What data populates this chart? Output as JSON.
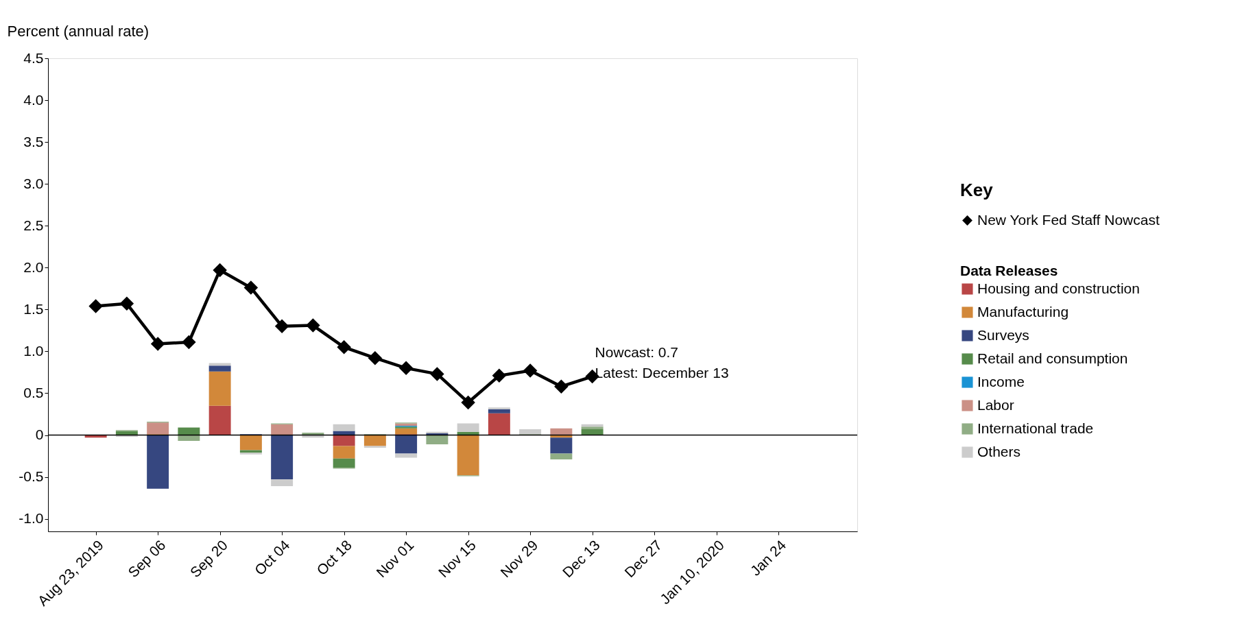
{
  "chart_data": {
    "type": "bar",
    "stacked": true,
    "ylabel": "Percent (annual rate)",
    "legend_title": "Key",
    "legend": "right",
    "grid": false,
    "marker": "diamond",
    "x": [
      "2019-08-23",
      "2019-08-30",
      "2019-09-06",
      "2019-09-13",
      "2019-09-20",
      "2019-09-27",
      "2019-10-04",
      "2019-10-11",
      "2019-10-18",
      "2019-10-25",
      "2019-11-01",
      "2019-11-08",
      "2019-11-15",
      "2019-11-22",
      "2019-11-29",
      "2019-12-06",
      "2019-12-13"
    ],
    "xlim": [
      "2019-08-13",
      "2020-02-10"
    ],
    "xticks": [
      {
        "value": "2019-08-23",
        "label": "Aug 23, 2019"
      },
      {
        "value": "2019-09-06",
        "label": "Sep 06"
      },
      {
        "value": "2019-09-20",
        "label": "Sep 20"
      },
      {
        "value": "2019-10-04",
        "label": "Oct 04"
      },
      {
        "value": "2019-10-18",
        "label": "Oct 18"
      },
      {
        "value": "2019-11-01",
        "label": "Nov 01"
      },
      {
        "value": "2019-11-15",
        "label": "Nov 15"
      },
      {
        "value": "2019-11-29",
        "label": "Nov 29"
      },
      {
        "value": "2019-12-13",
        "label": "Dec 13"
      },
      {
        "value": "2019-12-27",
        "label": "Dec 27"
      },
      {
        "value": "2020-01-10",
        "label": "Jan 10, 2020"
      },
      {
        "value": "2020-01-24",
        "label": "Jan 24"
      }
    ],
    "ylim": [
      -1.15,
      4.5
    ],
    "yticks": [
      {
        "value": -1.0,
        "label": "-1.0"
      },
      {
        "value": -0.5,
        "label": "-0.5"
      },
      {
        "value": 0,
        "label": "0"
      },
      {
        "value": 0.5,
        "label": "0.5"
      },
      {
        "value": 1.0,
        "label": "1.0"
      },
      {
        "value": 1.5,
        "label": "1.5"
      },
      {
        "value": 2.0,
        "label": "2.0"
      },
      {
        "value": 2.5,
        "label": "2.5"
      },
      {
        "value": 3.0,
        "label": "3.0"
      },
      {
        "value": 3.5,
        "label": "3.5"
      },
      {
        "value": 4.0,
        "label": "4.0"
      },
      {
        "value": 4.5,
        "label": "4.5"
      }
    ],
    "ref_lines": [
      {
        "axis": "y",
        "value": 0,
        "color": "#000000"
      }
    ],
    "annotations": [
      "Data Releases",
      {
        "text": "Nowcast:  0.7\nLatest: December 13",
        "x": "2019-12-13",
        "y": 0.7
      }
    ],
    "series": [
      {
        "name": "New York Fed Staff Nowcast",
        "type": "line",
        "color": "#000000",
        "values": [
          1.54,
          1.57,
          1.09,
          1.11,
          1.97,
          1.76,
          1.3,
          1.31,
          1.05,
          0.92,
          0.8,
          0.73,
          0.39,
          0.71,
          0.77,
          0.58,
          0.7
        ]
      },
      {
        "name": "Housing and construction",
        "color": "#b94646",
        "values": [
          -0.03,
          null,
          null,
          null,
          0.35,
          null,
          null,
          null,
          -0.13,
          null,
          0.01,
          null,
          null,
          0.26,
          null,
          null,
          null
        ]
      },
      {
        "name": "Manufacturing",
        "color": "#d2883a",
        "values": [
          null,
          null,
          0.01,
          null,
          0.41,
          -0.18,
          null,
          null,
          -0.15,
          -0.13,
          0.07,
          null,
          -0.48,
          null,
          null,
          -0.03,
          null
        ]
      },
      {
        "name": "Surveys",
        "color": "#364780",
        "values": [
          null,
          null,
          -0.64,
          null,
          0.07,
          0.01,
          -0.53,
          null,
          0.05,
          null,
          -0.22,
          0.02,
          null,
          0.05,
          null,
          -0.19,
          null
        ]
      },
      {
        "name": "Retail and consumption",
        "color": "#568b4b",
        "values": [
          null,
          0.05,
          null,
          0.09,
          null,
          -0.03,
          null,
          0.01,
          -0.11,
          null,
          0.02,
          null,
          0.04,
          null,
          null,
          null,
          0.07
        ]
      },
      {
        "name": "Income",
        "color": "#1a93d4",
        "values": [
          null,
          null,
          null,
          null,
          null,
          null,
          null,
          null,
          null,
          null,
          0.01,
          null,
          null,
          null,
          null,
          null,
          null
        ]
      },
      {
        "name": "Labor",
        "color": "#cb9086",
        "values": [
          null,
          null,
          0.14,
          null,
          null,
          null,
          0.13,
          null,
          null,
          null,
          0.03,
          null,
          null,
          null,
          null,
          0.08,
          null
        ]
      },
      {
        "name": "International trade",
        "color": "#90ad85",
        "values": [
          null,
          0.01,
          0.01,
          -0.07,
          null,
          null,
          0.01,
          0.02,
          -0.01,
          0.01,
          0.01,
          -0.11,
          -0.01,
          null,
          0.01,
          -0.07,
          0.03
        ]
      },
      {
        "name": "Others",
        "color": "#cccccc",
        "values": [
          null,
          -0.02,
          null,
          null,
          0.03,
          -0.02,
          -0.08,
          -0.03,
          0.08,
          -0.02,
          -0.05,
          0.02,
          0.1,
          0.02,
          0.06,
          null,
          0.03
        ]
      }
    ]
  }
}
